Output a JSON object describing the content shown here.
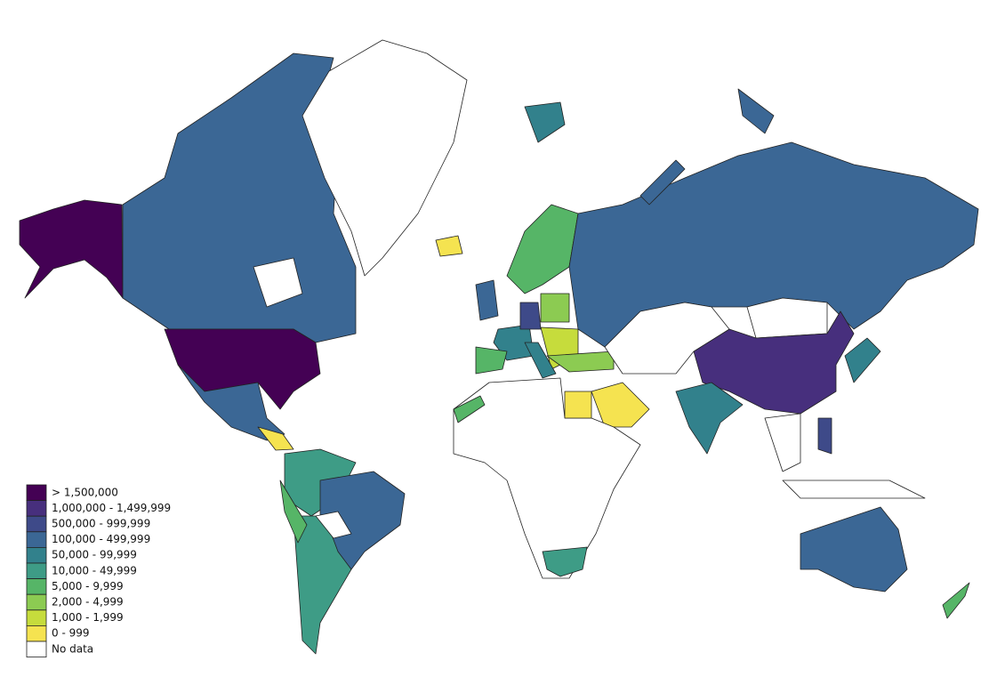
{
  "legend": [
    {
      "label": "> 1,500,000",
      "color": "#440154"
    },
    {
      "label": "1,000,000 - 1,499,999",
      "color": "#472f7d"
    },
    {
      "label": "500,000 - 999,999",
      "color": "#3e4a89"
    },
    {
      "label": "100,000 - 499,999",
      "color": "#3b6795"
    },
    {
      "label": "50,000 - 99,999",
      "color": "#32818c"
    },
    {
      "label": "10,000 - 49,999",
      "color": "#3e9c86"
    },
    {
      "label": "5,000 - 9,999",
      "color": "#56b567"
    },
    {
      "label": "2,000 - 4,999",
      "color": "#8ccb52"
    },
    {
      "label": "1,000 - 1,999",
      "color": "#c6dc3c"
    },
    {
      "label": "0 - 999",
      "color": "#f5e350"
    },
    {
      "label": "No data",
      "color": "#ffffff"
    }
  ]
}
